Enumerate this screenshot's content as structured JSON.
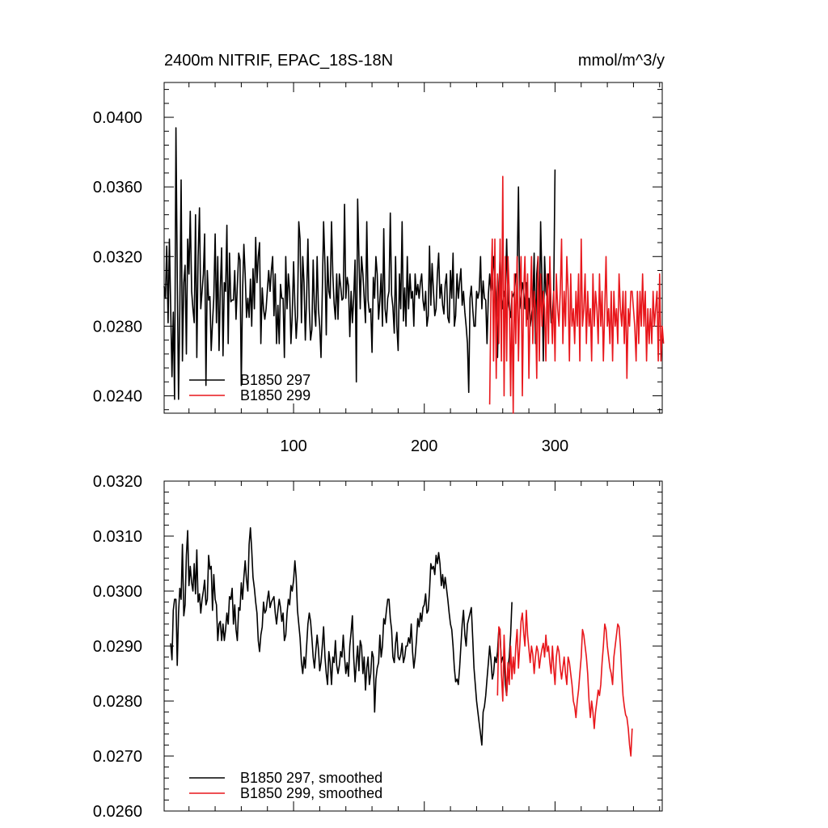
{
  "chart_data": [
    {
      "type": "line",
      "title": "2400m NITRIF, EPAC_18S-18N",
      "units": "mmol/m^3/y",
      "xlim": [
        1,
        382
      ],
      "ylim": [
        0.023,
        0.042
      ],
      "xticks": [
        100,
        200,
        300
      ],
      "xtick_labels": [
        "100",
        "200",
        "300"
      ],
      "yticks": [
        0.024,
        0.028,
        0.032,
        0.036,
        0.04
      ],
      "ytick_labels": [
        "0.0240",
        "0.0280",
        "0.0320",
        "0.0360",
        "0.0400"
      ],
      "legend": "bottom-left",
      "series": [
        {
          "name": "B1850 297",
          "color": "#000000",
          "x_start": 1,
          "values": [
            0.0303,
            0.0296,
            0.0326,
            0.0282,
            0.033,
            0.029,
            0.0251,
            0.0288,
            0.0238,
            0.0394,
            0.031,
            0.0238,
            0.029,
            0.0364,
            0.026,
            0.0305,
            0.0315,
            0.0264,
            0.033,
            0.031,
            0.0346,
            0.03,
            0.029,
            0.0282,
            0.0344,
            0.0262,
            0.032,
            0.0348,
            0.029,
            0.03,
            0.031,
            0.0333,
            0.0246,
            0.0312,
            0.0295,
            0.0297,
            0.0266,
            0.0282,
            0.0296,
            0.0333,
            0.0282,
            0.032,
            0.0266,
            0.0302,
            0.0325,
            0.0263,
            0.0305,
            0.03,
            0.0338,
            0.027,
            0.0322,
            0.0294,
            0.0295,
            0.0295,
            0.0312,
            0.0284,
            0.0303,
            0.0322,
            0.0318,
            0.0246,
            0.03,
            0.0327,
            0.031,
            0.0285,
            0.0296,
            0.0285,
            0.0307,
            0.028,
            0.0313,
            0.029,
            0.0331,
            0.0305,
            0.032,
            0.0328,
            0.027,
            0.0302,
            0.029,
            0.0284,
            0.029,
            0.0301,
            0.0312,
            0.03,
            0.0312,
            0.032,
            0.0286,
            0.031,
            0.027,
            0.0292,
            0.027,
            0.0304,
            0.0296,
            0.0296,
            0.0262,
            0.032,
            0.029,
            0.031,
            0.03,
            0.027,
            0.0286,
            0.0317,
            0.0292,
            0.0273,
            0.0286,
            0.034,
            0.033,
            0.0282,
            0.032,
            0.0305,
            0.0272,
            0.0296,
            0.033,
            0.029,
            0.0272,
            0.0278,
            0.0318,
            0.029,
            0.028,
            0.032,
            0.029,
            0.028,
            0.0262,
            0.03,
            0.034,
            0.0315,
            0.0275,
            0.032,
            0.03,
            0.0296,
            0.034,
            0.031,
            0.0293,
            0.0284,
            0.031,
            0.0284,
            0.031,
            0.0303,
            0.0295,
            0.0296,
            0.035,
            0.0296,
            0.0308,
            0.0303,
            0.0274,
            0.03,
            0.0282,
            0.0296,
            0.0318,
            0.0248,
            0.0353,
            0.032,
            0.029,
            0.032,
            0.031,
            0.0296,
            0.0282,
            0.034,
            0.0295,
            0.0288,
            0.029,
            0.0265,
            0.0308,
            0.0296,
            0.032,
            0.031,
            0.0284,
            0.0295,
            0.031,
            0.028,
            0.0336,
            0.029,
            0.0282,
            0.0296,
            0.03,
            0.0345,
            0.0298,
            0.0291,
            0.0276,
            0.032,
            0.028,
            0.0266,
            0.031,
            0.029,
            0.034,
            0.0283,
            0.0302,
            0.028,
            0.032,
            0.029,
            0.031,
            0.0296,
            0.03,
            0.028,
            0.031,
            0.0298,
            0.0304,
            0.0296,
            0.0305,
            0.031,
            0.0295,
            0.0289,
            0.03,
            0.028,
            0.0286,
            0.0326,
            0.0292,
            0.0316,
            0.03,
            0.0286,
            0.029,
            0.031,
            0.0322,
            0.0296,
            0.0304,
            0.0292,
            0.0287,
            0.0304,
            0.031,
            0.0285,
            0.0282,
            0.0312,
            0.0296,
            0.0322,
            0.028,
            0.0286,
            0.031,
            0.0296,
            0.0305,
            0.0313,
            0.0292,
            0.03,
            0.0288,
            0.028,
            0.027,
            0.0242,
            0.0296,
            0.0303,
            0.029,
            0.028,
            0.028,
            0.03,
            0.0296,
            0.03,
            0.032,
            0.029,
            0.0306,
            0.0296,
            0.0295,
            0.027,
            0.0298,
            0.031,
            0.03,
            0.0305,
            0.032,
            0.031,
            0.0295,
            0.0262,
            0.03,
            0.032,
            0.0298,
            0.029,
            0.03,
            0.0296,
            0.033,
            0.0295,
            0.029,
            0.0285,
            0.0296,
            0.0298,
            0.03,
            0.031,
            0.031,
            0.036,
            0.029,
            0.0296,
            0.0305,
            0.03,
            0.029,
            0.0305,
            0.0284,
            0.0296,
            0.028,
            0.0286,
            0.0292,
            0.0322,
            0.027,
            0.031,
            0.032,
            0.028,
            0.034,
            0.0305,
            0.026,
            0.032,
            0.03,
            0.0296,
            0.031,
            0.03,
            0.0282,
            0.0286,
            0.03,
            0.037
          ]
        },
        {
          "name": "B1850 299",
          "color": "#e8171c",
          "x_start": 250,
          "values": [
            0.0235,
            0.03,
            0.033,
            0.026,
            0.033,
            0.025,
            0.031,
            0.027,
            0.033,
            0.026,
            0.0366,
            0.024,
            0.032,
            0.026,
            0.032,
            0.03,
            0.024,
            0.03,
            0.023,
            0.031,
            0.027,
            0.032,
            0.026,
            0.03,
            0.032,
            0.024,
            0.03,
            0.032,
            0.028,
            0.031,
            0.025,
            0.029,
            0.032,
            0.027,
            0.03,
            0.029,
            0.025,
            0.032,
            0.026,
            0.031,
            0.028,
            0.03,
            0.029,
            0.026,
            0.031,
            0.027,
            0.032,
            0.029,
            0.027,
            0.03,
            0.026,
            0.031,
            0.029,
            0.028,
            0.03,
            0.033,
            0.027,
            0.03,
            0.028,
            0.032,
            0.03,
            0.026,
            0.031,
            0.028,
            0.029,
            0.027,
            0.03,
            0.028,
            0.031,
            0.026,
            0.033,
            0.028,
            0.029,
            0.031,
            0.027,
            0.03,
            0.028,
            0.029,
            0.026,
            0.031,
            0.028,
            0.03,
            0.029,
            0.027,
            0.031,
            0.028,
            0.03,
            0.026,
            0.029,
            0.032,
            0.028,
            0.029,
            0.027,
            0.03,
            0.026,
            0.03,
            0.028,
            0.029,
            0.027,
            0.031,
            0.029,
            0.028,
            0.03,
            0.027,
            0.03,
            0.025,
            0.029,
            0.028,
            0.03,
            0.03,
            0.029,
            0.028,
            0.026,
            0.03,
            0.027,
            0.03,
            0.028,
            0.031,
            0.028,
            0.03,
            0.026,
            0.029,
            0.027,
            0.029,
            0.027,
            0.03,
            0.028,
            0.029,
            0.03,
            0.026,
            0.031,
            0.026,
            0.028,
            0.027
          ]
        }
      ]
    },
    {
      "type": "line",
      "title": "",
      "xlim": [
        1,
        382
      ],
      "ylim": [
        0.026,
        0.032
      ],
      "xticks": [
        100,
        200,
        300
      ],
      "xtick_labels": [],
      "yticks": [
        0.026,
        0.027,
        0.028,
        0.029,
        0.03,
        0.031,
        0.032
      ],
      "ytick_labels": [
        "0.0260",
        "0.0270",
        "0.0280",
        "0.0290",
        "0.0300",
        "0.0310",
        "0.0320"
      ],
      "legend": "bottom-left",
      "series": [
        {
          "name": "B1850 297, smoothed",
          "color": "#000000",
          "x_start": 6,
          "values": [
            0.02905,
            0.02875,
            0.02965,
            0.02985,
            0.02985,
            0.02865,
            0.0296,
            0.03005,
            0.02985,
            0.03085,
            0.02955,
            0.02975,
            0.03065,
            0.0311,
            0.0301,
            0.03045,
            0.03015,
            0.03,
            0.0305,
            0.02995,
            0.03075,
            0.0298,
            0.02995,
            0.0296,
            0.02985,
            0.03,
            0.0302,
            0.02975,
            0.02985,
            0.03065,
            0.0304,
            0.03045,
            0.02965,
            0.0303,
            0.02985,
            0.02975,
            0.0291,
            0.0294,
            0.02945,
            0.0291,
            0.0294,
            0.0291,
            0.0293,
            0.0296,
            0.0294,
            0.0299,
            0.02985,
            0.03005,
            0.0294,
            0.02975,
            0.0293,
            0.0291,
            0.0297,
            0.02965,
            0.03015,
            0.02985,
            0.03025,
            0.03055,
            0.0302,
            0.03,
            0.03085,
            0.03115,
            0.03075,
            0.03025,
            0.03005,
            0.0298,
            0.0296,
            0.0291,
            0.0289,
            0.0292,
            0.02935,
            0.0298,
            0.0296,
            0.02965,
            0.02985,
            0.03,
            0.0297,
            0.0298,
            0.02985,
            0.0299,
            0.0296,
            0.0294,
            0.02965,
            0.02985,
            0.0297,
            0.02945,
            0.0296,
            0.0291,
            0.0292,
            0.0296,
            0.02985,
            0.02975,
            0.0301,
            0.03,
            0.0302,
            0.03055,
            0.03025,
            0.02965,
            0.0294,
            0.02915,
            0.0287,
            0.0285,
            0.0288,
            0.0286,
            0.029,
            0.0294,
            0.0296,
            0.02945,
            0.02915,
            0.0288,
            0.0286,
            0.0289,
            0.0292,
            0.02895,
            0.02855,
            0.0287,
            0.029,
            0.02935,
            0.0288,
            0.0285,
            0.0283,
            0.0289,
            0.0287,
            0.0283,
            0.0288,
            0.0287,
            0.0291,
            0.02865,
            0.0285,
            0.02865,
            0.0289,
            0.0288,
            0.0292,
            0.0288,
            0.0285,
            0.0287,
            0.02845,
            0.029,
            0.02925,
            0.02955,
            0.0288,
            0.02835,
            0.0287,
            0.029,
            0.02855,
            0.0291,
            0.029,
            0.0285,
            0.0288,
            0.0282,
            0.0286,
            0.0288,
            0.0283,
            0.0285,
            0.0289,
            0.0288,
            0.0278,
            0.0284,
            0.0286,
            0.0287,
            0.0292,
            0.0288,
            0.029,
            0.0295,
            0.0294,
            0.02965,
            0.02985,
            0.02985,
            0.0295,
            0.0293,
            0.0288,
            0.0287,
            0.02905,
            0.02925,
            0.0288,
            0.02875,
            0.02885,
            0.02905,
            0.0287,
            0.0288,
            0.029,
            0.029,
            0.02915,
            0.02905,
            0.0294,
            0.0289,
            0.0286,
            0.0288,
            0.0291,
            0.0295,
            0.02935,
            0.0296,
            0.02945,
            0.0297,
            0.02975,
            0.02995,
            0.0296,
            0.02965,
            0.03,
            0.0305,
            0.0304,
            0.03045,
            0.0303,
            0.03065,
            0.0305,
            0.0307,
            0.0305,
            0.0301,
            0.0303,
            0.03005,
            0.03025,
            0.03005,
            0.02985,
            0.0296,
            0.0294,
            0.0293,
            0.029,
            0.0286,
            0.02835,
            0.0284,
            0.0283,
            0.0286,
            0.029,
            0.0294,
            0.02965,
            0.0292,
            0.029,
            0.0294,
            0.0295,
            0.0296,
            0.0297,
            0.02915,
            0.0286,
            0.0283,
            0.028,
            0.0278,
            0.0276,
            0.0274,
            0.0272,
            0.0278,
            0.0279,
            0.0281,
            0.0284,
            0.0287,
            0.029,
            0.02875,
            0.0284,
            0.0285,
            0.0288,
            0.0287,
            0.0289,
            0.0293,
            0.0292,
            0.0287,
            0.0288,
            0.0288,
            0.0283,
            0.0281,
            0.0286,
            0.0288,
            0.0292,
            0.0298
          ]
        },
        {
          "name": "B1850 299, smoothed",
          "color": "#e8171c",
          "x_start": 256,
          "values": [
            0.0281,
            0.02935,
            0.0293,
            0.0285,
            0.028,
            0.0292,
            0.0286,
            0.0281,
            0.0287,
            0.0283,
            0.029,
            0.0284,
            0.0288,
            0.0285,
            0.029,
            0.0293,
            0.0286,
            0.029,
            0.02945,
            0.0296,
            0.02925,
            0.029,
            0.02965,
            0.0292,
            0.02895,
            0.0287,
            0.029,
            0.02885,
            0.0285,
            0.0288,
            0.029,
            0.0289,
            0.0286,
            0.0288,
            0.02895,
            0.02905,
            0.0288,
            0.0292,
            0.0289,
            0.029,
            0.0287,
            0.0285,
            0.029,
            0.0286,
            0.0283,
            0.0288,
            0.029,
            0.0289,
            0.0286,
            0.0284,
            0.0286,
            0.0288,
            0.0285,
            0.0283,
            0.0288,
            0.0287,
            0.0285,
            0.0283,
            0.028,
            0.0279,
            0.0277,
            0.028,
            0.0282,
            0.0285,
            0.0288,
            0.0293,
            0.0292,
            0.029,
            0.0288,
            0.0285,
            0.028,
            0.0277,
            0.028,
            0.0278,
            0.0275,
            0.0278,
            0.028,
            0.0282,
            0.0281,
            0.0283,
            0.0287,
            0.029,
            0.0294,
            0.0293,
            0.029,
            0.0288,
            0.0286,
            0.0285,
            0.0283,
            0.0288,
            0.029,
            0.0292,
            0.0294,
            0.02935,
            0.029,
            0.0285,
            0.0281,
            0.0279,
            0.02775,
            0.0277,
            0.0275,
            0.0272,
            0.027,
            0.0275
          ]
        }
      ]
    }
  ]
}
